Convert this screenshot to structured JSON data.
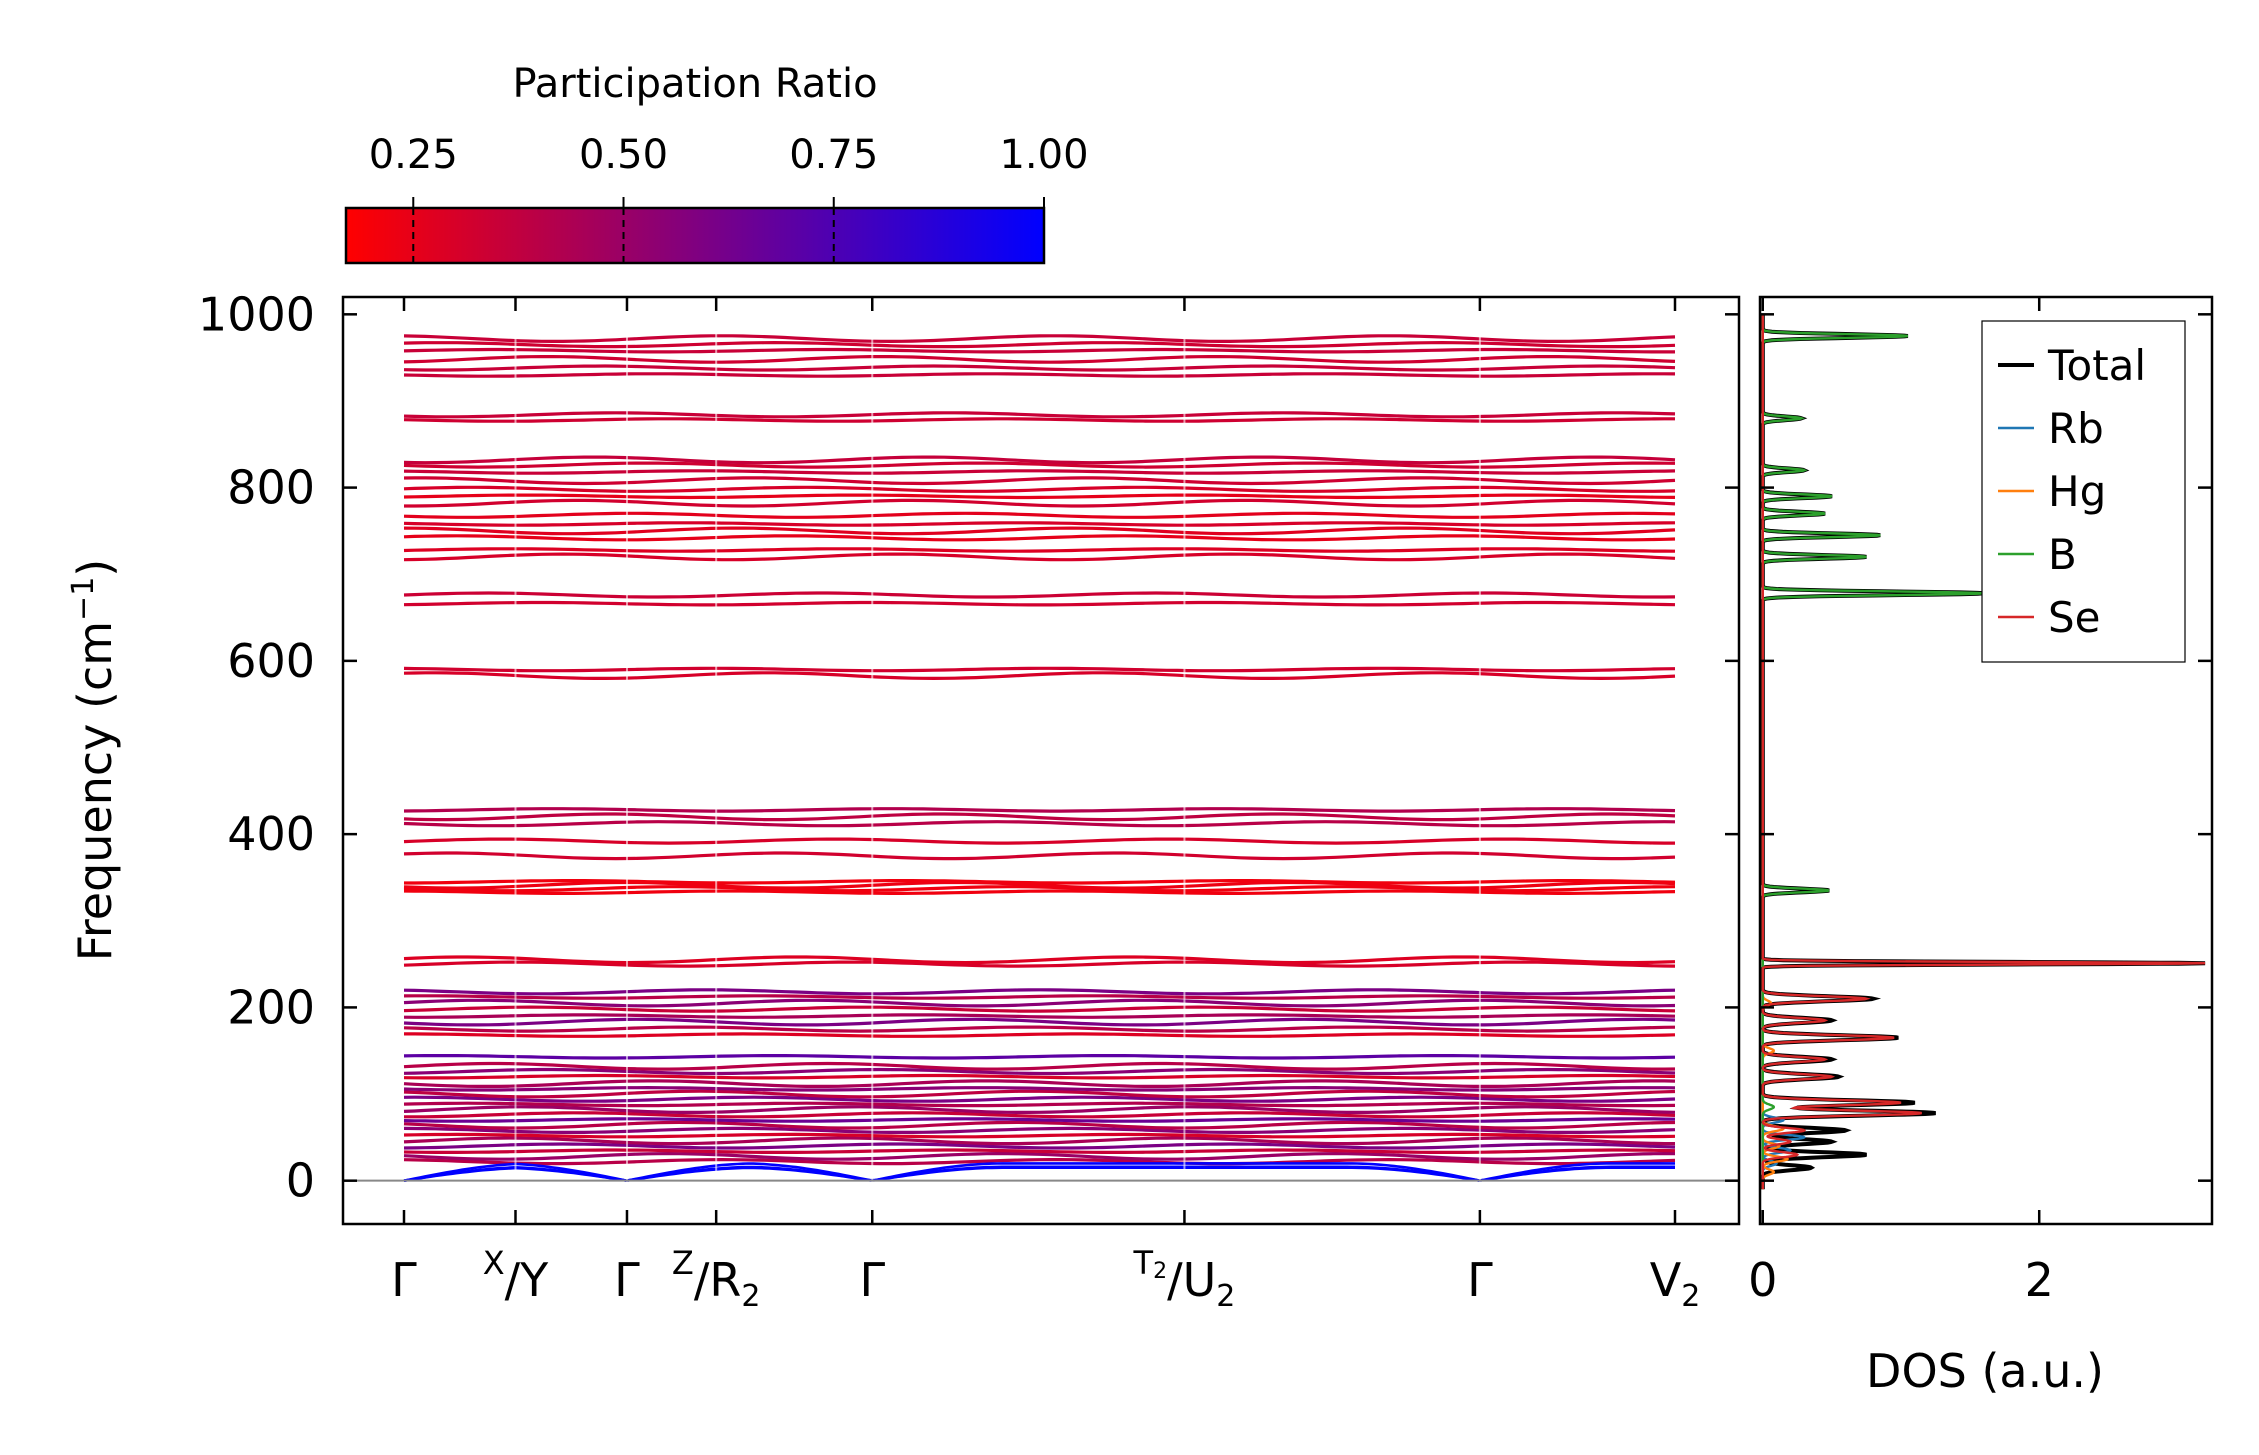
{
  "colors": {
    "low": "#ff0000",
    "high": "#0000ff",
    "total": "#000000",
    "Rb": "#1f77b4",
    "Hg": "#ff7f0e",
    "B": "#2ca02c",
    "Se": "#d62728",
    "zero_line": "#888888"
  },
  "chart_data": [
    {
      "type": "line",
      "name": "phonon-band-structure",
      "title": "",
      "ylabel": "Frequency (cm",
      "ylabel_sup": "−1",
      "ylabel_suffix": ")",
      "ylim": [
        -50,
        1020
      ],
      "yticks": [
        0,
        200,
        400,
        600,
        800,
        1000
      ],
      "ytick_labels": [
        "0",
        "200",
        "400",
        "600",
        "800",
        "1000"
      ],
      "x_path_positions": [
        0,
        1,
        2,
        2.8,
        4.2,
        7.0,
        9.65,
        11.4
      ],
      "x_path_labels": [
        {
          "main": "Γ"
        },
        {
          "sup": "X",
          "main": "/Y"
        },
        {
          "main": "Γ"
        },
        {
          "sup": "Z",
          "main": "/R",
          "sub": "2"
        },
        {
          "main": "Γ"
        },
        {
          "sup": "T",
          "supsub": "2",
          "main": "/U",
          "sub": "2"
        },
        {
          "main": "Γ"
        },
        {
          "main": "V",
          "sub": "2"
        }
      ],
      "colorbar": {
        "label": "Participation Ratio",
        "range": [
          0.17,
          1.0
        ],
        "ticks": [
          0.25,
          0.5,
          0.75,
          1.0
        ],
        "tick_labels": [
          "0.25",
          "0.50",
          "0.75",
          "1.00"
        ]
      },
      "flat_bands": [
        {
          "f": 930,
          "pr": 0.35
        },
        {
          "f": 938,
          "pr": 0.35
        },
        {
          "f": 948,
          "pr": 0.33
        },
        {
          "f": 958,
          "pr": 0.35
        },
        {
          "f": 965,
          "pr": 0.33
        },
        {
          "f": 972,
          "pr": 0.35
        },
        {
          "f": 878,
          "pr": 0.33
        },
        {
          "f": 884,
          "pr": 0.35
        },
        {
          "f": 720,
          "pr": 0.3
        },
        {
          "f": 728,
          "pr": 0.28
        },
        {
          "f": 742,
          "pr": 0.25
        },
        {
          "f": 750,
          "pr": 0.27
        },
        {
          "f": 758,
          "pr": 0.3
        },
        {
          "f": 768,
          "pr": 0.26
        },
        {
          "f": 782,
          "pr": 0.32
        },
        {
          "f": 790,
          "pr": 0.25
        },
        {
          "f": 798,
          "pr": 0.3
        },
        {
          "f": 808,
          "pr": 0.33
        },
        {
          "f": 818,
          "pr": 0.35
        },
        {
          "f": 826,
          "pr": 0.33
        },
        {
          "f": 832,
          "pr": 0.36
        },
        {
          "f": 666,
          "pr": 0.32
        },
        {
          "f": 676,
          "pr": 0.34
        },
        {
          "f": 583,
          "pr": 0.3
        },
        {
          "f": 590,
          "pr": 0.32
        },
        {
          "f": 412,
          "pr": 0.4
        },
        {
          "f": 420,
          "pr": 0.38
        },
        {
          "f": 428,
          "pr": 0.42
        },
        {
          "f": 392,
          "pr": 0.3
        },
        {
          "f": 375,
          "pr": 0.32
        },
        {
          "f": 333,
          "pr": 0.22
        },
        {
          "f": 337,
          "pr": 0.22
        },
        {
          "f": 341,
          "pr": 0.23
        },
        {
          "f": 345,
          "pr": 0.22
        },
        {
          "f": 250,
          "pr": 0.3
        },
        {
          "f": 255,
          "pr": 0.28
        },
        {
          "f": 168,
          "pr": 0.28
        },
        {
          "f": 175,
          "pr": 0.4
        },
        {
          "f": 183,
          "pr": 0.6
        },
        {
          "f": 190,
          "pr": 0.45
        },
        {
          "f": 198,
          "pr": 0.35
        },
        {
          "f": 205,
          "pr": 0.55
        },
        {
          "f": 212,
          "pr": 0.4
        },
        {
          "f": 218,
          "pr": 0.6
        },
        {
          "f": 112,
          "pr": 0.45
        },
        {
          "f": 120,
          "pr": 0.3
        },
        {
          "f": 126,
          "pr": 0.55
        },
        {
          "f": 132,
          "pr": 0.4
        },
        {
          "f": 143,
          "pr": 0.7
        },
        {
          "f": 22,
          "pr": 0.4
        },
        {
          "f": 28,
          "pr": 0.5
        },
        {
          "f": 34,
          "pr": 0.35
        },
        {
          "f": 40,
          "pr": 0.6
        },
        {
          "f": 46,
          "pr": 0.45
        },
        {
          "f": 52,
          "pr": 0.3
        },
        {
          "f": 58,
          "pr": 0.55
        },
        {
          "f": 64,
          "pr": 0.4
        },
        {
          "f": 70,
          "pr": 0.65
        },
        {
          "f": 76,
          "pr": 0.35
        },
        {
          "f": 82,
          "pr": 0.5
        },
        {
          "f": 88,
          "pr": 0.42
        },
        {
          "f": 94,
          "pr": 0.6
        },
        {
          "f": 100,
          "pr": 0.38
        },
        {
          "f": 106,
          "pr": 0.55
        }
      ],
      "acoustic_max": [
        20,
        16,
        15
      ],
      "zero_line": 0
    },
    {
      "type": "line",
      "name": "phonon-dos",
      "xlabel": "DOS (a.u.)",
      "xlim": [
        -0.02,
        3.25
      ],
      "xticks": [
        0,
        2
      ],
      "xtick_labels": [
        "0",
        "2"
      ],
      "ylim": [
        -50,
        1020
      ],
      "legend_position": "top-right",
      "series": [
        {
          "name": "Total",
          "color_key": "total",
          "peaks": [
            [
              975,
              1.05,
              3
            ],
            [
              880,
              0.28,
              3
            ],
            [
              820,
              0.3,
              3
            ],
            [
              790,
              0.5,
              3
            ],
            [
              770,
              0.45,
              3
            ],
            [
              745,
              0.85,
              3
            ],
            [
              720,
              0.75,
              3
            ],
            [
              678,
              1.6,
              3
            ],
            [
              335,
              0.48,
              3
            ],
            [
              251,
              3.2,
              2
            ],
            [
              210,
              0.8,
              4
            ],
            [
              185,
              0.5,
              4
            ],
            [
              165,
              0.98,
              4
            ],
            [
              140,
              0.5,
              4
            ],
            [
              120,
              0.55,
              4
            ],
            [
              90,
              1.1,
              4
            ],
            [
              78,
              1.25,
              4
            ],
            [
              58,
              0.6,
              4
            ],
            [
              45,
              0.5,
              4
            ],
            [
              30,
              0.75,
              4
            ],
            [
              15,
              0.35,
              4
            ]
          ]
        },
        {
          "name": "Rb",
          "color_key": "Rb",
          "peaks": [
            [
              70,
              0.15,
              4
            ],
            [
              50,
              0.3,
              4
            ],
            [
              35,
              0.2,
              4
            ],
            [
              20,
              0.1,
              4
            ]
          ]
        },
        {
          "name": "Hg",
          "color_key": "Hg",
          "peaks": [
            [
              60,
              0.15,
              4
            ],
            [
              40,
              0.12,
              4
            ],
            [
              25,
              0.18,
              4
            ],
            [
              10,
              0.08,
              4
            ],
            [
              150,
              0.08,
              4
            ],
            [
              205,
              0.06,
              4
            ]
          ]
        },
        {
          "name": "B",
          "color_key": "B",
          "peaks": [
            [
              975,
              1.05,
              3
            ],
            [
              880,
              0.28,
              3
            ],
            [
              820,
              0.3,
              3
            ],
            [
              790,
              0.5,
              3
            ],
            [
              770,
              0.45,
              3
            ],
            [
              745,
              0.85,
              3
            ],
            [
              720,
              0.75,
              3
            ],
            [
              678,
              1.6,
              3
            ],
            [
              335,
              0.48,
              3
            ],
            [
              85,
              0.08,
              4
            ]
          ]
        },
        {
          "name": "Se",
          "color_key": "Se",
          "peaks": [
            [
              251,
              3.2,
              2
            ],
            [
              210,
              0.75,
              4
            ],
            [
              185,
              0.45,
              4
            ],
            [
              165,
              0.95,
              4
            ],
            [
              140,
              0.45,
              4
            ],
            [
              120,
              0.5,
              4
            ],
            [
              90,
              1.0,
              4
            ],
            [
              78,
              1.15,
              4
            ],
            [
              58,
              0.3,
              4
            ],
            [
              45,
              0.2,
              4
            ],
            [
              30,
              0.25,
              4
            ]
          ]
        }
      ]
    }
  ]
}
